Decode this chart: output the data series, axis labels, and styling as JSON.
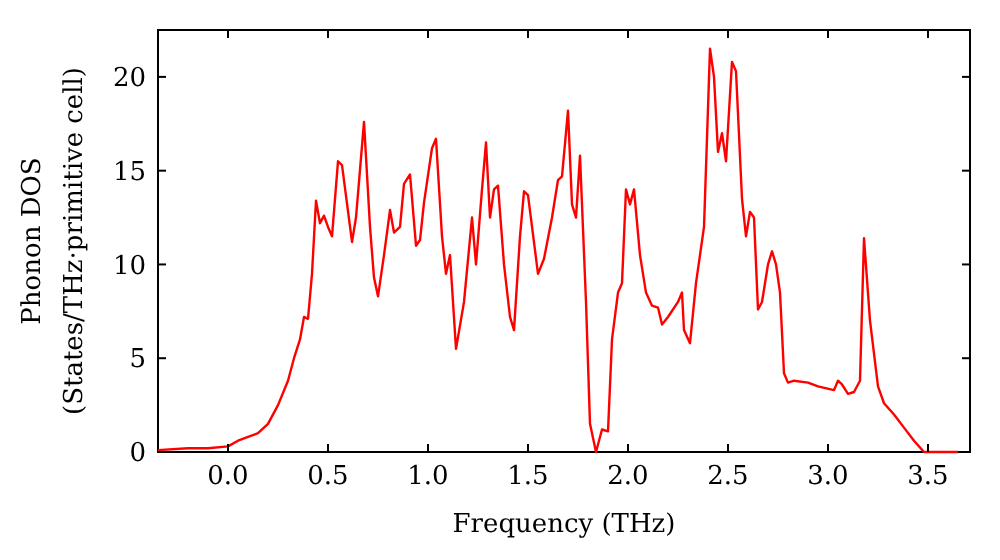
{
  "chart_data": {
    "type": "line",
    "xlabel": "Frequency (THz)",
    "ylabel": "Phonon DOS\n(States/THz·primitive cell)",
    "xlim": [
      -0.35,
      3.71
    ],
    "ylim": [
      0,
      22.5
    ],
    "xticks": [
      {
        "value": 0,
        "label": "0.0"
      },
      {
        "value": 0.5,
        "label": "0.5"
      },
      {
        "value": 1,
        "label": "1.0"
      },
      {
        "value": 1.5,
        "label": "1.5"
      },
      {
        "value": 2,
        "label": "2.0"
      },
      {
        "value": 2.5,
        "label": "2.5"
      },
      {
        "value": 3,
        "label": "3.0"
      },
      {
        "value": 3.5,
        "label": "3.5"
      }
    ],
    "yticks": [
      0,
      5,
      10,
      15,
      20
    ],
    "grid": false,
    "marker": "none",
    "line_style": "solid",
    "series": [
      {
        "color": "#ff0000",
        "x": [
          -0.35,
          -0.2,
          -0.1,
          0.0,
          0.05,
          0.1,
          0.15,
          0.2,
          0.25,
          0.3,
          0.33,
          0.36,
          0.38,
          0.4,
          0.42,
          0.44,
          0.46,
          0.48,
          0.5,
          0.52,
          0.55,
          0.57,
          0.62,
          0.64,
          0.68,
          0.71,
          0.73,
          0.75,
          0.78,
          0.81,
          0.83,
          0.86,
          0.88,
          0.91,
          0.94,
          0.96,
          0.98,
          1.02,
          1.04,
          1.07,
          1.09,
          1.11,
          1.14,
          1.18,
          1.22,
          1.24,
          1.27,
          1.29,
          1.31,
          1.33,
          1.35,
          1.38,
          1.41,
          1.43,
          1.46,
          1.48,
          1.5,
          1.55,
          1.58,
          1.62,
          1.65,
          1.67,
          1.7,
          1.72,
          1.74,
          1.76,
          1.79,
          1.81,
          1.84,
          1.87,
          1.9,
          1.92,
          1.95,
          1.97,
          1.99,
          2.01,
          2.03,
          2.06,
          2.09,
          2.12,
          2.15,
          2.17,
          2.2,
          2.25,
          2.27,
          2.28,
          2.31,
          2.34,
          2.38,
          2.41,
          2.43,
          2.45,
          2.47,
          2.49,
          2.52,
          2.54,
          2.57,
          2.59,
          2.61,
          2.63,
          2.65,
          2.67,
          2.7,
          2.72,
          2.74,
          2.76,
          2.78,
          2.8,
          2.83,
          2.9,
          2.95,
          3.03,
          3.05,
          3.07,
          3.1,
          3.13,
          3.16,
          3.18,
          3.21,
          3.25,
          3.28,
          3.33,
          3.38,
          3.43,
          3.48,
          3.65
        ],
        "values": [
          0.1,
          0.2,
          0.2,
          0.3,
          0.6,
          0.8,
          1.0,
          1.5,
          2.5,
          3.8,
          5,
          6,
          7.2,
          7.1,
          9.5,
          13.4,
          12.2,
          12.6,
          12.0,
          11.5,
          15.5,
          15.3,
          11.2,
          12.5,
          17.6,
          12,
          9.3,
          8.3,
          10.5,
          12.9,
          11.7,
          12.0,
          14.3,
          14.8,
          11,
          11.3,
          13.3,
          16.2,
          16.7,
          11.5,
          9.5,
          10.5,
          5.5,
          8,
          12.5,
          10,
          14,
          16.5,
          12.5,
          14,
          14.2,
          10,
          7.2,
          6.5,
          11.5,
          13.9,
          13.7,
          9.5,
          10.3,
          12.5,
          14.5,
          14.7,
          18.2,
          13.2,
          12.5,
          15.8,
          8,
          1.5,
          0,
          1.2,
          1.1,
          6,
          8.5,
          9,
          14,
          13.2,
          14,
          10.5,
          8.5,
          7.8,
          7.7,
          6.8,
          7.2,
          8,
          8.5,
          6.5,
          5.8,
          9,
          12,
          21.5,
          20,
          16,
          17,
          15.5,
          20.8,
          20.3,
          13.5,
          11.5,
          12.8,
          12.5,
          7.6,
          8,
          10,
          10.7,
          10,
          8.5,
          4.2,
          3.7,
          3.8,
          3.7,
          3.5,
          3.3,
          3.8,
          3.6,
          3.1,
          3.2,
          3.8,
          11.4,
          7,
          3.5,
          2.6,
          2,
          1.3,
          0.6,
          0,
          0
        ]
      }
    ]
  }
}
